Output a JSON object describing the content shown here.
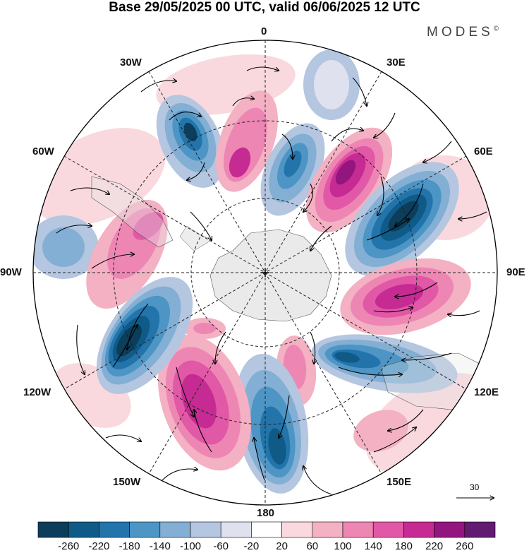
{
  "title": "Base 29/05/2025 00 UTC, valid 06/06/2025 12 UTC",
  "brand": {
    "text": "MODES",
    "mark": "©"
  },
  "longitude_labels": {
    "lon_0": "0",
    "lon_30e": "30E",
    "lon_60e": "60E",
    "lon_90e": "90E",
    "lon_120e": "120E",
    "lon_150e": "150E",
    "lon_180": "180",
    "lon_150w": "150W",
    "lon_120w": "120W",
    "lon_90w": "90W",
    "lon_60w": "60W",
    "lon_30w": "30W"
  },
  "reference_vector": {
    "label": "30"
  },
  "colorbar": {
    "ticks": [
      "-260",
      "-220",
      "-180",
      "-140",
      "-100",
      "-60",
      "-20",
      "20",
      "60",
      "100",
      "140",
      "180",
      "220",
      "260"
    ],
    "colors": [
      "#0c3d5b",
      "#0f5a87",
      "#2274ab",
      "#4d95c5",
      "#83afd4",
      "#b4c6e0",
      "#dfe1ee",
      "#ffffff",
      "#f9d9de",
      "#f3b1c3",
      "#ee86b4",
      "#e158a6",
      "#c62a93",
      "#93157f",
      "#611b70"
    ]
  },
  "map": {
    "projection": "south polar stereographic",
    "background": "#ffffff",
    "land_color": "#e6e6e6",
    "grid_style": "dashed"
  }
}
